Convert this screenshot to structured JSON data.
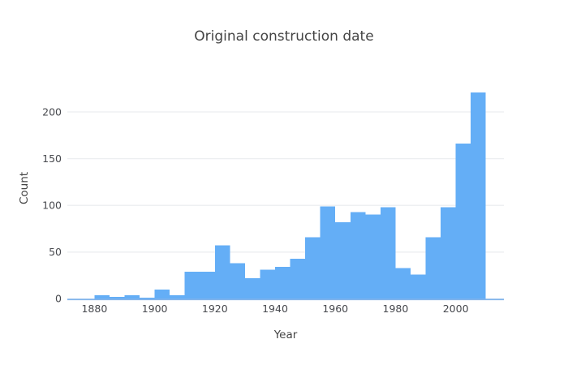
{
  "chart_data": {
    "type": "bar",
    "subtype": "histogram",
    "title": "Original construction date",
    "xlabel": "Year",
    "ylabel": "Count",
    "bin_width": 5,
    "bin_start_years": [
      1880,
      1885,
      1890,
      1895,
      1900,
      1905,
      1910,
      1915,
      1920,
      1925,
      1930,
      1935,
      1940,
      1945,
      1950,
      1955,
      1960,
      1965,
      1970,
      1975,
      1980,
      1985,
      1990,
      1995,
      2000,
      2005
    ],
    "counts": [
      4,
      2,
      4,
      1,
      10,
      4,
      29,
      29,
      57,
      38,
      22,
      31,
      34,
      43,
      66,
      99,
      82,
      93,
      90,
      98,
      33,
      26,
      66,
      98,
      166,
      221
    ],
    "xticks": [
      1880,
      1900,
      1920,
      1940,
      1960,
      1980,
      2000
    ],
    "yticks": [
      0,
      50,
      100,
      150,
      200
    ],
    "xlim": [
      1871,
      2016
    ],
    "ylim": [
      0,
      233
    ],
    "grid": true,
    "legend": false,
    "colors": {
      "bar": "#64aef6",
      "axis_line": "#82b4eb",
      "gridline": "#eceef1",
      "text": "#444444",
      "tick_text": "#47494e",
      "background": "#ffffff"
    }
  }
}
